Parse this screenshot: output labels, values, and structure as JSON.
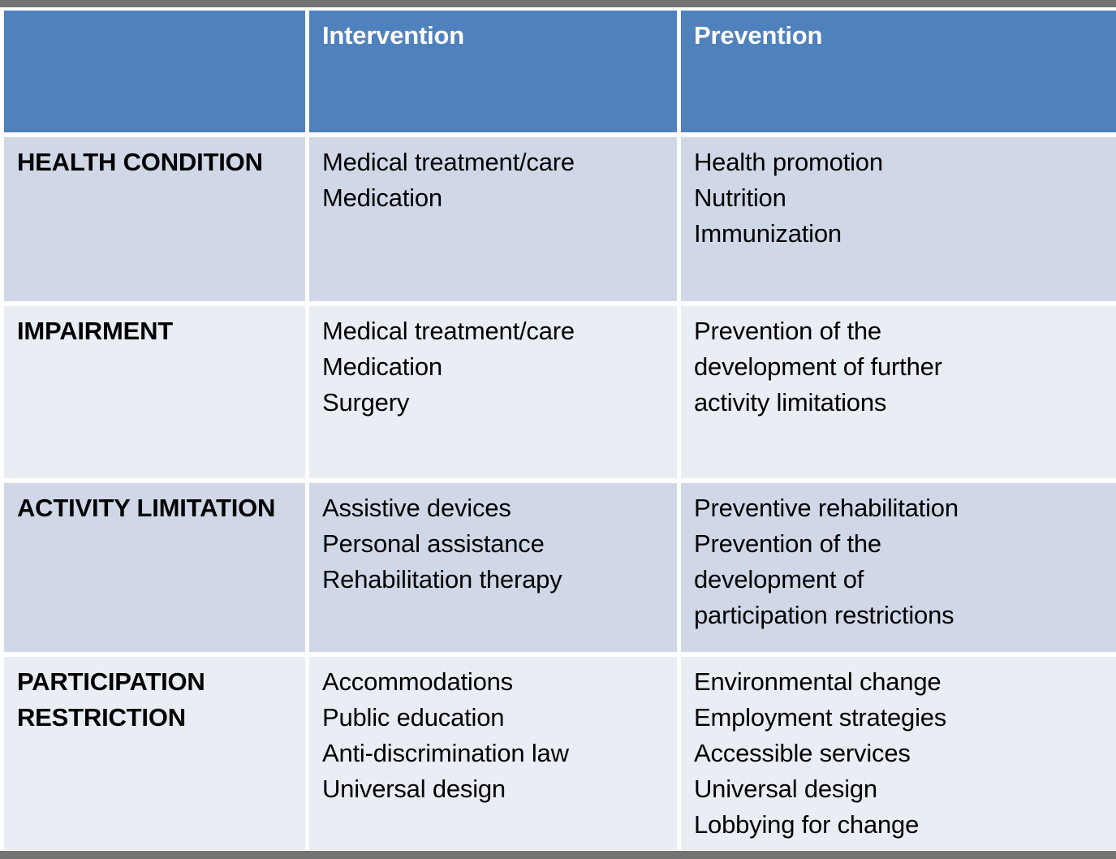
{
  "table": {
    "header": {
      "corner": "",
      "intervention": "Intervention",
      "prevention": "Prevention"
    },
    "rows": [
      {
        "label_lines": [
          "HEALTH CONDITION"
        ],
        "intervention_lines": [
          "Medical treatment/care",
          "Medication"
        ],
        "prevention_lines": [
          "Health promotion",
          "Nutrition",
          "Immunization"
        ]
      },
      {
        "label_lines": [
          "IMPAIRMENT"
        ],
        "intervention_lines": [
          "Medical treatment/care",
          "Medication",
          "Surgery"
        ],
        "prevention_lines": [
          "Prevention of the",
          "development of further",
          "activity limitations"
        ]
      },
      {
        "label_lines": [
          "ACTIVITY LIMITATION"
        ],
        "intervention_lines": [
          "Assistive devices",
          "Personal assistance",
          "Rehabilitation therapy"
        ],
        "prevention_lines": [
          "Preventive rehabilitation",
          "Prevention of the",
          "development of",
          "participation restrictions"
        ]
      },
      {
        "label_lines": [
          "PARTICIPATION",
          "RESTRICTION"
        ],
        "intervention_lines": [
          "Accommodations",
          "Public education",
          "Anti-discrimination law",
          "Universal design"
        ],
        "prevention_lines": [
          "Environmental change",
          "Employment strategies",
          "Accessible services",
          "Universal design",
          "Lobbying for change"
        ]
      }
    ]
  },
  "colors": {
    "header_bg": "#4F81BD",
    "header_text": "#FFFFFF",
    "row_band_dark": "#D0D8E8",
    "row_band_light": "#E9EDF4",
    "body_text": "#000000",
    "frame_bar_gray": "#747474",
    "cell_gap_white": "#FFFFFF"
  }
}
